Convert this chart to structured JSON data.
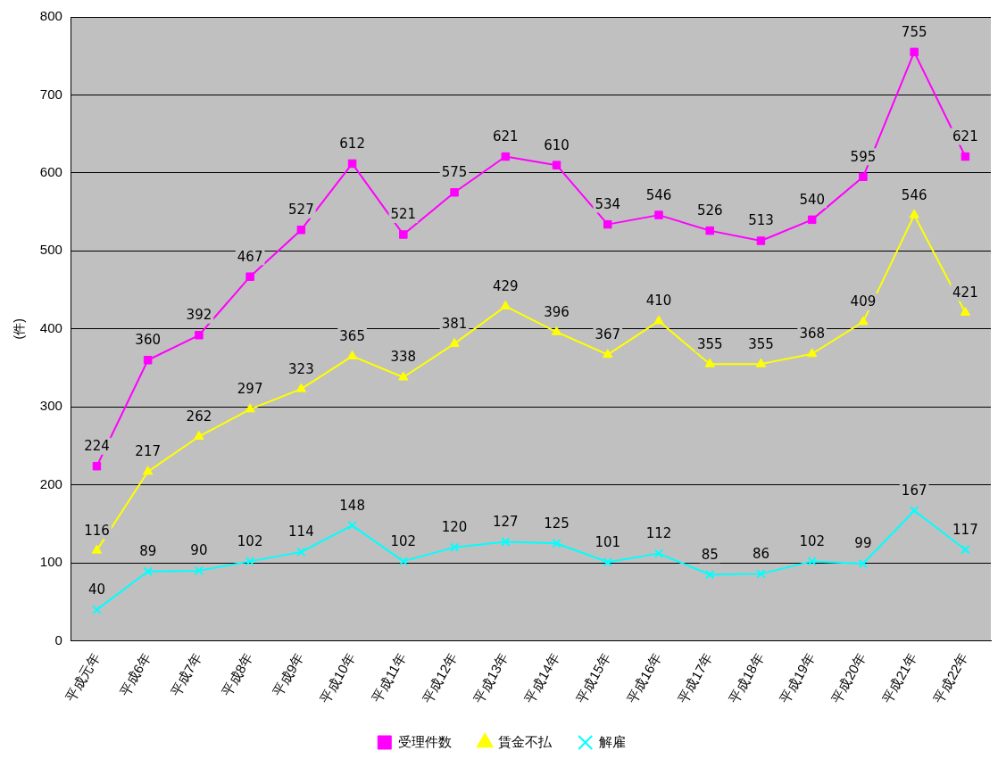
{
  "chart_data": {
    "type": "line",
    "ylabel": "(件)",
    "categories": [
      "平成元年",
      "平成6年",
      "平成7年",
      "平成8年",
      "平成9年",
      "平成10年",
      "平成11年",
      "平成12年",
      "平成13年",
      "平成14年",
      "平成15年",
      "平成16年",
      "平成17年",
      "平成18年",
      "平成19年",
      "平成20年",
      "平成21年",
      "平成22年"
    ],
    "series": [
      {
        "name": "受理件数",
        "color": "#ff00ff",
        "marker": "square",
        "values": [
          224,
          360,
          392,
          467,
          527,
          612,
          521,
          575,
          621,
          610,
          534,
          546,
          526,
          513,
          540,
          595,
          755,
          621
        ]
      },
      {
        "name": "賃金不払",
        "color": "#ffff00",
        "marker": "triangle",
        "values": [
          116,
          217,
          262,
          297,
          323,
          365,
          338,
          381,
          429,
          396,
          367,
          410,
          355,
          355,
          368,
          409,
          546,
          421
        ]
      },
      {
        "name": "解雇",
        "color": "#00ffff",
        "marker": "cross",
        "values": [
          40,
          89,
          90,
          102,
          114,
          148,
          102,
          120,
          127,
          125,
          101,
          112,
          85,
          86,
          102,
          99,
          167,
          117
        ]
      }
    ],
    "ylim": [
      0,
      800
    ],
    "yticks": [
      0,
      100,
      200,
      300,
      400,
      500,
      600,
      700,
      800
    ],
    "grid": "y",
    "legend": "bottom",
    "data_labels": true,
    "line_style": "solid"
  }
}
